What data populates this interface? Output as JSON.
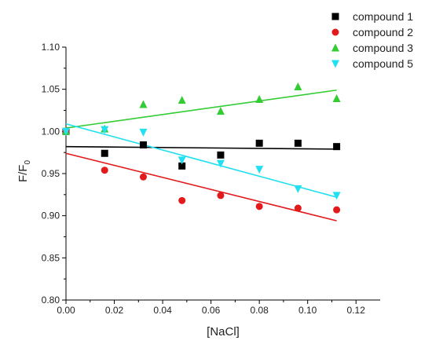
{
  "chart_data": {
    "type": "scatter",
    "xlabel": "[NaCl]",
    "ylabel_main": "F/F",
    "ylabel_sub": "0",
    "xlim": [
      0,
      0.13
    ],
    "ylim": [
      0.8,
      1.1
    ],
    "xticks": [
      "0.00",
      "0.02",
      "0.04",
      "0.06",
      "0.08",
      "0.10",
      "0.12"
    ],
    "yticks": [
      "0.80",
      "0.85",
      "0.90",
      "0.95",
      "1.00",
      "1.05",
      "1.10"
    ],
    "legend_position": "top-right",
    "grid": false,
    "series": [
      {
        "name": "compound 1",
        "marker": "square",
        "color": "#000000",
        "x": [
          0,
          0.016,
          0.032,
          0.048,
          0.064,
          0.08,
          0.096,
          0.112
        ],
        "y": [
          1.0,
          0.974,
          0.984,
          0.959,
          0.972,
          0.986,
          0.986,
          0.982
        ],
        "fit": [
          [
            0,
            0.982
          ],
          [
            0.112,
            0.979
          ]
        ]
      },
      {
        "name": "compound 2",
        "marker": "circle",
        "color": "#e31a1c",
        "x": [
          0,
          0.016,
          0.032,
          0.048,
          0.064,
          0.08,
          0.096,
          0.112
        ],
        "y": [
          1.0,
          0.954,
          0.946,
          0.918,
          0.924,
          0.911,
          0.909,
          0.907
        ],
        "fit": [
          [
            0,
            0.974
          ],
          [
            0.112,
            0.894
          ]
        ]
      },
      {
        "name": "compound 3",
        "marker": "triangle-up",
        "color": "#33cc33",
        "x": [
          0,
          0.016,
          0.032,
          0.048,
          0.064,
          0.08,
          0.096,
          0.112
        ],
        "y": [
          1.0,
          1.003,
          1.032,
          1.037,
          1.024,
          1.038,
          1.053,
          1.039
        ],
        "fit": [
          [
            0,
            1.004
          ],
          [
            0.112,
            1.049
          ]
        ]
      },
      {
        "name": "compound 5",
        "marker": "triangle-down",
        "color": "#22e0f0",
        "x": [
          0,
          0.016,
          0.032,
          0.048,
          0.064,
          0.08,
          0.096,
          0.112
        ],
        "y": [
          1.0,
          1.002,
          0.999,
          0.966,
          0.962,
          0.955,
          0.932,
          0.924
        ],
        "fit": [
          [
            0,
            1.009
          ],
          [
            0.112,
            0.922
          ]
        ]
      }
    ]
  }
}
